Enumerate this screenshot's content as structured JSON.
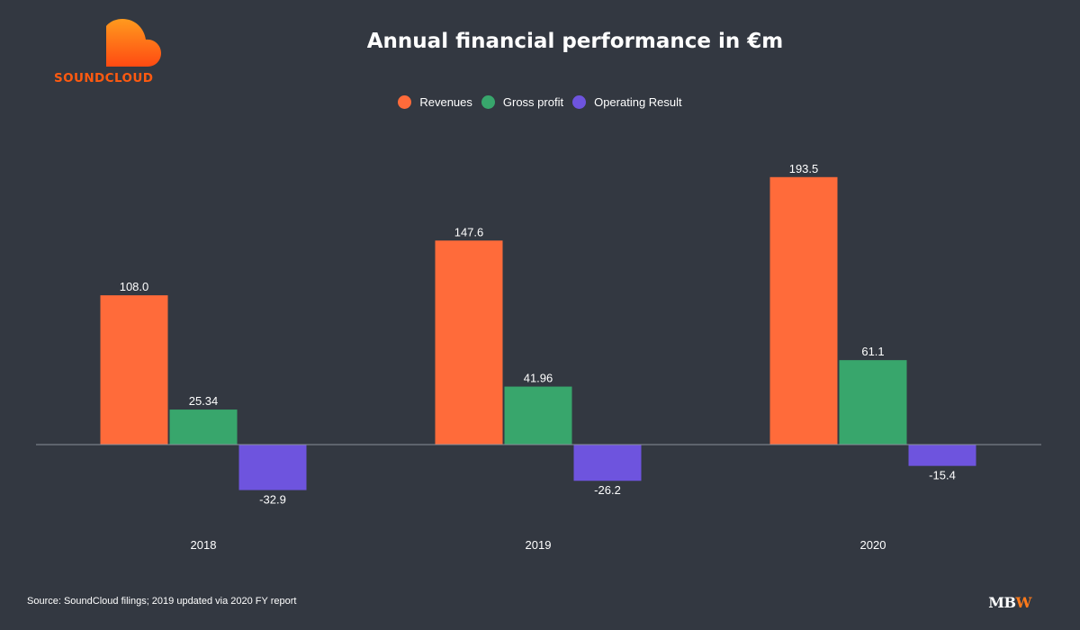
{
  "header": {
    "title": "Annual financial performance in €m",
    "logo_text": "SOUNDCLOUD"
  },
  "colors": {
    "background": "#333841",
    "revenues": "#ff6b3a",
    "gross_profit": "#38a66c",
    "operating_result": "#6e54de"
  },
  "legend": [
    {
      "label": "Revenues",
      "color": "#ff6b3a"
    },
    {
      "label": "Gross profit",
      "color": "#38a66c"
    },
    {
      "label": "Operating Result",
      "color": "#6e54de"
    }
  ],
  "chart_data": {
    "type": "bar",
    "title": "Annual financial performance in €m",
    "categories": [
      "2018",
      "2019",
      "2020"
    ],
    "series": [
      {
        "name": "Revenues",
        "values": [
          108.0,
          147.6,
          193.5
        ],
        "labels": [
          "108.0",
          "147.6",
          "193.5"
        ]
      },
      {
        "name": "Gross profit",
        "values": [
          25.34,
          41.96,
          61.1
        ],
        "labels": [
          "25.34",
          "41.96",
          "61.1"
        ]
      },
      {
        "name": "Operating Result",
        "values": [
          -32.9,
          -26.2,
          -15.4
        ],
        "labels": [
          "-32.9",
          "-26.2",
          "-15.4"
        ]
      }
    ],
    "ylim": [
      -60,
      210
    ],
    "legend_position": "top",
    "grid": false
  },
  "footer": {
    "source": "Source: SoundCloud filings; 2019 updated via 2020 FY report",
    "brand_mb": "MB",
    "brand_w": "W"
  }
}
